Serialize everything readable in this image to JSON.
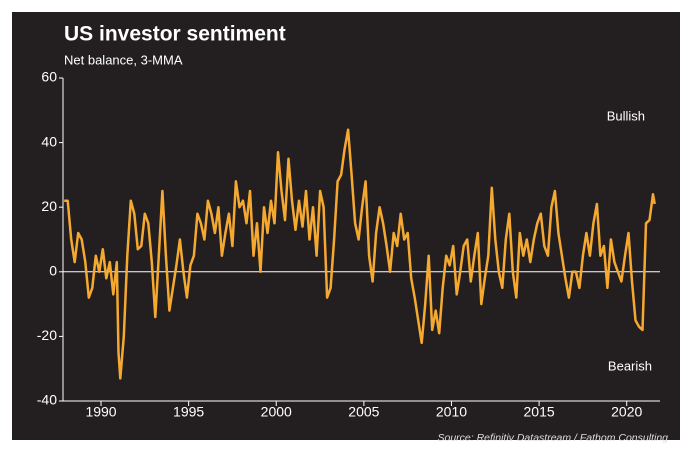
{
  "chart_data": {
    "type": "line",
    "title": "US investor sentiment",
    "subtitle": "Net balance, 3-MMA",
    "annotations": [
      "Bullish",
      "Bearish"
    ],
    "source": "Source: Refinitiv Datastream / Fathom Consulting",
    "xlim": [
      1987.83,
      2021.9
    ],
    "xticks": [
      1990,
      1995,
      2000,
      2005,
      2010,
      2015,
      2020
    ],
    "ylim": [
      -40,
      60
    ],
    "yticks": [
      60,
      40,
      20,
      0,
      -20,
      -40
    ],
    "series": [
      {
        "color": "#f5a931",
        "x": [
          1987.9,
          1988.1,
          1988.3,
          1988.5,
          1988.7,
          1988.9,
          1989.1,
          1989.3,
          1989.5,
          1989.7,
          1989.9,
          1990.1,
          1990.3,
          1990.5,
          1990.7,
          1990.9,
          1991.0,
          1991.1,
          1991.3,
          1991.5,
          1991.7,
          1991.9,
          1992.1,
          1992.3,
          1992.5,
          1992.7,
          1992.9,
          1993.1,
          1993.3,
          1993.5,
          1993.7,
          1993.9,
          1994.1,
          1994.3,
          1994.5,
          1994.7,
          1994.9,
          1995.1,
          1995.3,
          1995.5,
          1995.7,
          1995.9,
          1996.1,
          1996.3,
          1996.5,
          1996.7,
          1996.9,
          1997.1,
          1997.3,
          1997.5,
          1997.7,
          1997.9,
          1998.1,
          1998.3,
          1998.5,
          1998.7,
          1998.9,
          1999.1,
          1999.3,
          1999.5,
          1999.7,
          1999.9,
          2000.1,
          2000.3,
          2000.5,
          2000.7,
          2000.9,
          2001.1,
          2001.3,
          2001.5,
          2001.7,
          2001.9,
          2002.1,
          2002.3,
          2002.5,
          2002.7,
          2002.9,
          2003.1,
          2003.3,
          2003.5,
          2003.7,
          2003.9,
          2004.1,
          2004.3,
          2004.5,
          2004.7,
          2004.9,
          2005.1,
          2005.3,
          2005.5,
          2005.7,
          2005.9,
          2006.1,
          2006.3,
          2006.5,
          2006.7,
          2006.9,
          2007.1,
          2007.3,
          2007.5,
          2007.7,
          2007.9,
          2008.1,
          2008.3,
          2008.5,
          2008.7,
          2008.9,
          2009.1,
          2009.3,
          2009.5,
          2009.7,
          2009.9,
          2010.1,
          2010.3,
          2010.5,
          2010.7,
          2010.9,
          2011.1,
          2011.3,
          2011.5,
          2011.7,
          2011.9,
          2012.1,
          2012.3,
          2012.5,
          2012.7,
          2012.9,
          2013.1,
          2013.3,
          2013.5,
          2013.7,
          2013.9,
          2014.1,
          2014.3,
          2014.5,
          2014.7,
          2014.9,
          2015.1,
          2015.3,
          2015.5,
          2015.7,
          2015.9,
          2016.1,
          2016.3,
          2016.5,
          2016.7,
          2016.9,
          2017.1,
          2017.3,
          2017.5,
          2017.7,
          2017.9,
          2018.1,
          2018.3,
          2018.5,
          2018.7,
          2018.9,
          2019.1,
          2019.3,
          2019.5,
          2019.7,
          2019.9,
          2020.1,
          2020.3,
          2020.5,
          2020.7,
          2020.9,
          2021.1,
          2021.3,
          2021.5,
          2021.6
        ],
        "values": [
          22,
          22,
          10,
          3,
          12,
          10,
          3,
          -8,
          -5,
          5,
          0,
          7,
          -2,
          3,
          -7,
          3,
          -25,
          -33,
          -20,
          5,
          22,
          18,
          7,
          8,
          18,
          15,
          3,
          -14,
          5,
          25,
          5,
          -12,
          -5,
          2,
          10,
          0,
          -8,
          2,
          5,
          18,
          15,
          10,
          22,
          18,
          12,
          20,
          5,
          12,
          18,
          8,
          28,
          20,
          22,
          15,
          25,
          5,
          15,
          0,
          20,
          12,
          22,
          15,
          37,
          25,
          16,
          35,
          22,
          13,
          22,
          14,
          25,
          10,
          20,
          5,
          25,
          20,
          -8,
          -5,
          10,
          28,
          30,
          38,
          44,
          30,
          15,
          10,
          20,
          28,
          5,
          -3,
          12,
          20,
          15,
          8,
          0,
          12,
          8,
          18,
          10,
          12,
          -2,
          -8,
          -15,
          -22,
          -10,
          5,
          -18,
          -12,
          -19,
          -5,
          5,
          2,
          8,
          -7,
          0,
          8,
          10,
          -3,
          5,
          12,
          -10,
          -2,
          5,
          26,
          10,
          0,
          -5,
          10,
          18,
          0,
          -8,
          12,
          5,
          10,
          3,
          10,
          15,
          18,
          8,
          5,
          20,
          25,
          12,
          5,
          -2,
          -8,
          0,
          0,
          -5,
          5,
          12,
          5,
          15,
          21,
          5,
          8,
          -5,
          10,
          3,
          0,
          -3,
          5,
          12,
          -3,
          -15,
          -17,
          -18,
          15,
          16,
          24,
          21
        ]
      }
    ]
  }
}
